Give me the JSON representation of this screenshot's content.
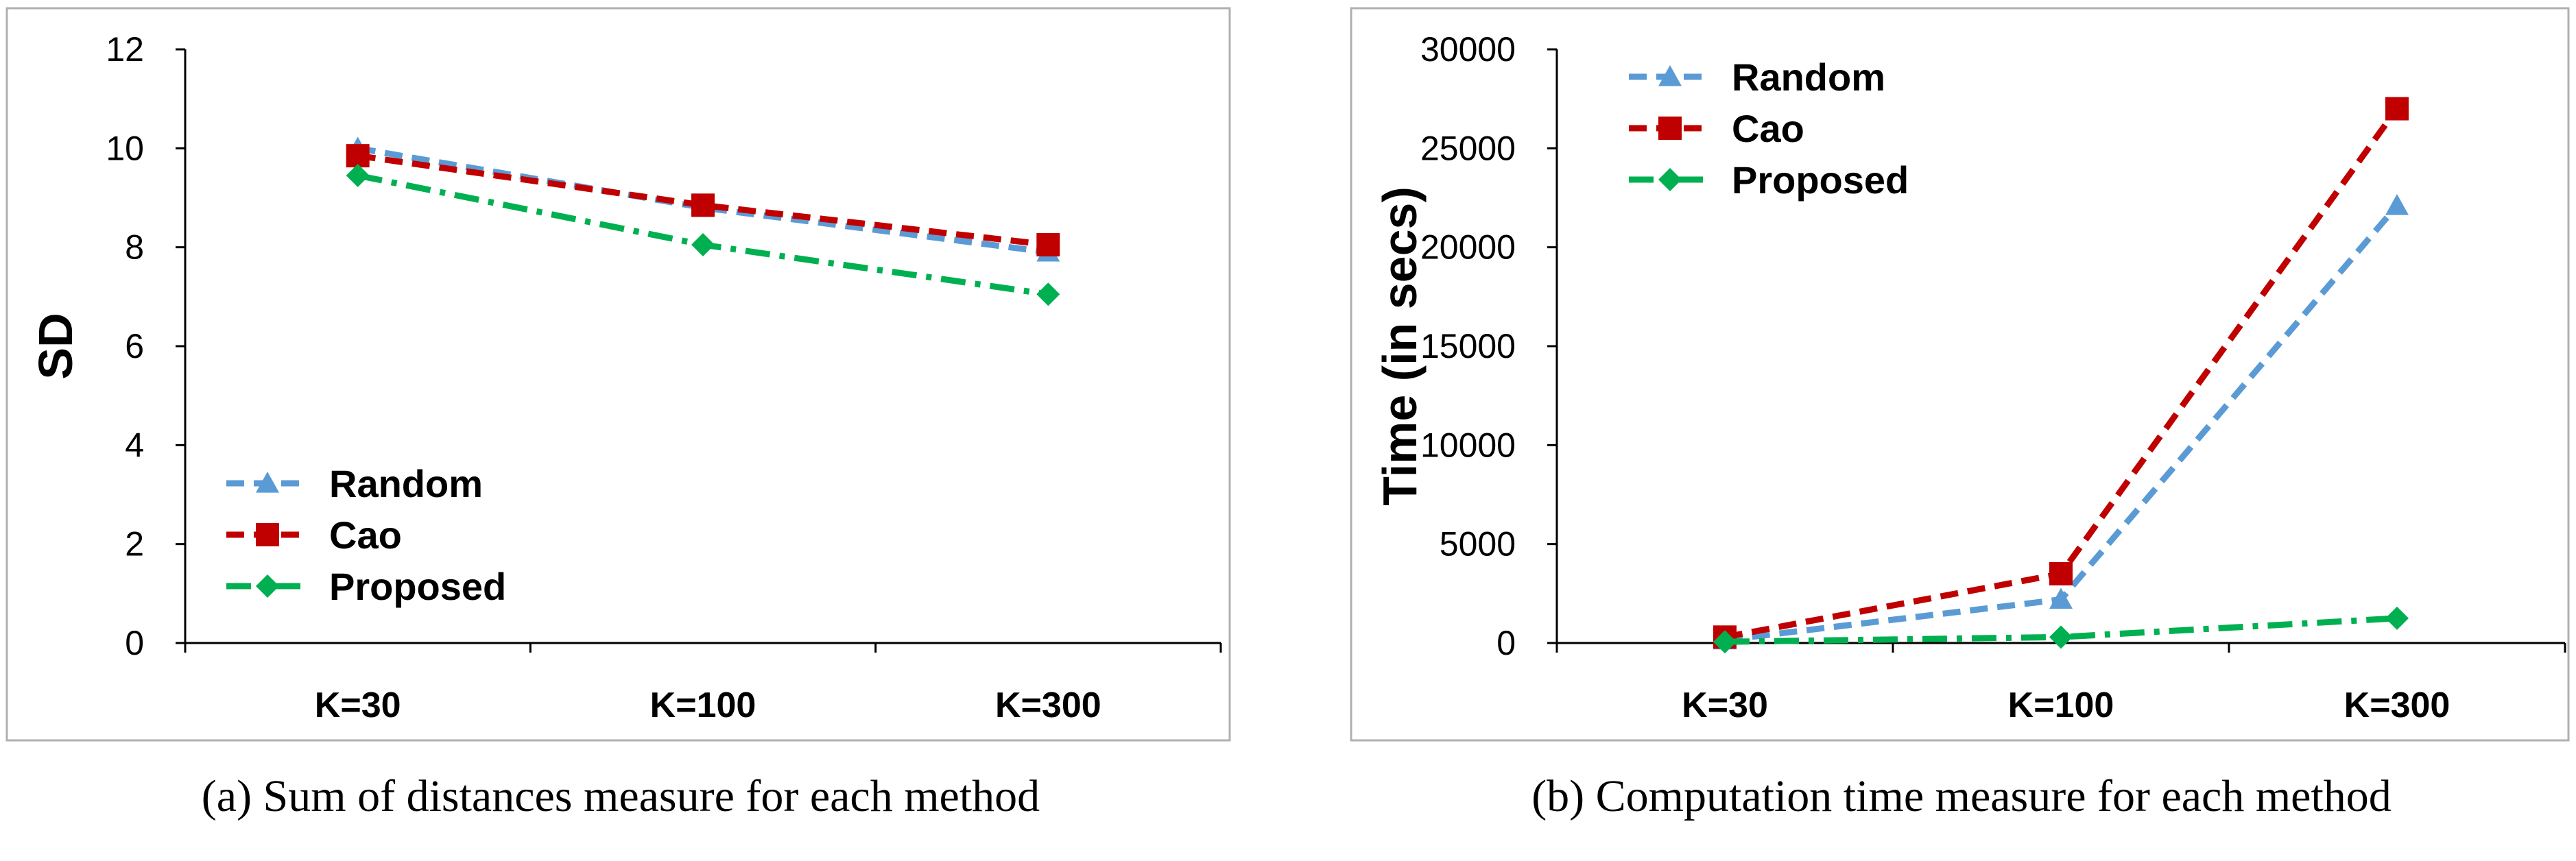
{
  "chart_data": [
    {
      "type": "line",
      "caption": "(a) Sum of distances measure for each method",
      "ylabel": "SD",
      "xlabel": "",
      "categories": [
        "K=30",
        "K=100",
        "K=300"
      ],
      "ylim": [
        0,
        12
      ],
      "yticks": [
        0,
        2,
        4,
        6,
        8,
        10,
        12
      ],
      "grid": false,
      "legend_placement": "bottom-left",
      "series": [
        {
          "name": "Random",
          "values": [
            10.0,
            8.8,
            7.9
          ],
          "color": "#5B9BD5",
          "marker": "triangle",
          "dash": "dashed"
        },
        {
          "name": "Cao",
          "values": [
            9.85,
            8.85,
            8.05
          ],
          "color": "#C00000",
          "marker": "square",
          "dash": "dashed"
        },
        {
          "name": "Proposed",
          "values": [
            9.45,
            8.05,
            7.05
          ],
          "color": "#00B050",
          "marker": "diamond",
          "dash": "dashdot"
        }
      ]
    },
    {
      "type": "line",
      "caption": "(b) Computation time measure for each method",
      "ylabel": "Time (in secs)",
      "xlabel": "",
      "categories": [
        "K=30",
        "K=100",
        "K=300"
      ],
      "ylim": [
        0,
        30000
      ],
      "yticks": [
        0,
        5000,
        10000,
        15000,
        20000,
        25000,
        30000
      ],
      "grid": false,
      "legend_placement": "top-left",
      "series": [
        {
          "name": "Random",
          "values": [
            150,
            2200,
            22100
          ],
          "color": "#5B9BD5",
          "marker": "triangle",
          "dash": "dashed"
        },
        {
          "name": "Cao",
          "values": [
            300,
            3500,
            27000
          ],
          "color": "#C00000",
          "marker": "square",
          "dash": "dashed"
        },
        {
          "name": "Proposed",
          "values": [
            60,
            300,
            1250
          ],
          "color": "#00B050",
          "marker": "diamond",
          "dash": "dashdot"
        }
      ]
    }
  ]
}
